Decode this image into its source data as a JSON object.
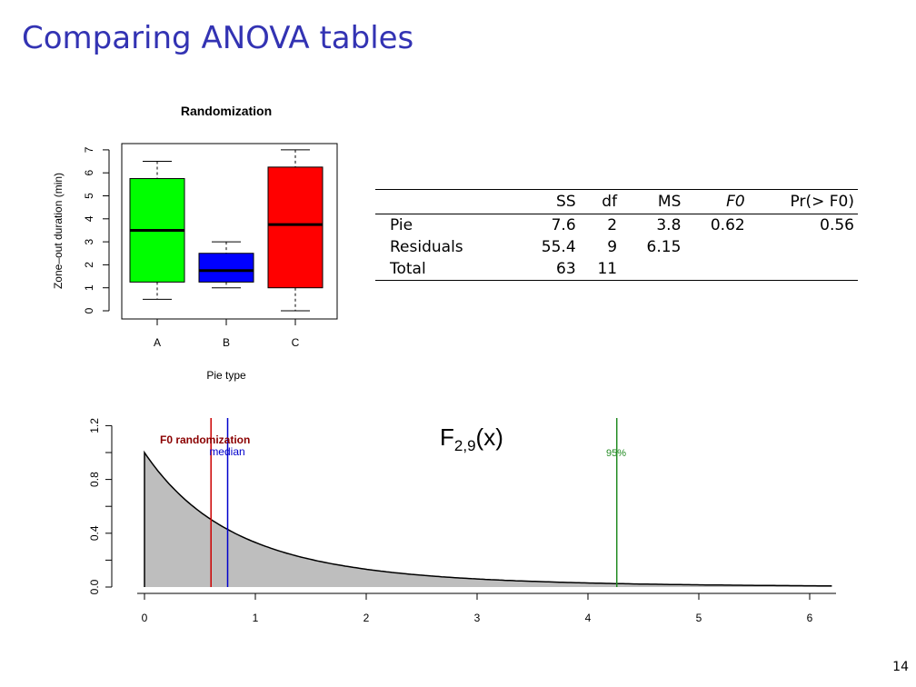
{
  "slide": {
    "title": "Comparing ANOVA tables",
    "page_number": "14"
  },
  "boxplot": {
    "title": "Randomization",
    "xlabel": "Pie type",
    "ylabel": "Zone–out duration (min)",
    "yticks": [
      "0",
      "1",
      "2",
      "3",
      "4",
      "5",
      "6",
      "7"
    ]
  },
  "anova_table": {
    "headers": [
      "",
      "SS",
      "df",
      "MS",
      "F0",
      "Pr(> F0)"
    ],
    "rows": [
      [
        "Pie",
        "7.6",
        "2",
        "3.8",
        "0.62",
        "0.56"
      ],
      [
        "Residuals",
        "55.4",
        "9",
        "6.15",
        "",
        ""
      ],
      [
        "Total",
        "63",
        "11",
        "",
        "",
        ""
      ]
    ]
  },
  "density": {
    "title_main": "F",
    "title_sub": "2,9",
    "title_tail": "(x)",
    "f0_label": "F0 randomization",
    "median_label": "median",
    "pct_label": "95%",
    "xticks": [
      "0",
      "1",
      "2",
      "3",
      "4",
      "5",
      "6"
    ],
    "yticks": [
      "0.0",
      "0.4",
      "0.8",
      "1.2"
    ]
  },
  "colors": {
    "title": "#3333b3",
    "box_a": "#00ff00",
    "box_b": "#0000ff",
    "box_c": "#ff0000",
    "f0_line": "#cc0000",
    "median_line": "#0000cc",
    "pct_line": "#228b22",
    "f0_text": "#8b0000",
    "fill": "#bebebe"
  },
  "chart_data": [
    {
      "type": "box",
      "title": "Randomization",
      "xlabel": "Pie type",
      "ylabel": "Zone–out duration (min)",
      "ylim": [
        0,
        7
      ],
      "categories": [
        "A",
        "B",
        "C"
      ],
      "boxes": [
        {
          "name": "A",
          "min": 0.5,
          "q1": 1.25,
          "median": 3.5,
          "q3": 5.75,
          "max": 6.5
        },
        {
          "name": "B",
          "min": 1.0,
          "q1": 1.25,
          "median": 1.75,
          "q3": 2.5,
          "max": 3.0
        },
        {
          "name": "C",
          "min": 0.0,
          "q1": 1.0,
          "median": 3.75,
          "q3": 6.25,
          "max": 7.0
        }
      ]
    },
    {
      "type": "area",
      "title": "F2,9(x)",
      "distribution": {
        "df1": 2,
        "df2": 9
      },
      "xlim": [
        0,
        6.2
      ],
      "ylim": [
        0,
        1.2
      ],
      "xticks": [
        0,
        1,
        2,
        3,
        4,
        5,
        6
      ],
      "yticks": [
        0,
        0.4,
        0.8,
        1.2
      ],
      "vlines": [
        {
          "label": "F0 randomization",
          "x": 0.6
        },
        {
          "label": "median",
          "x": 0.75
        },
        {
          "label": "95%",
          "x": 4.26
        }
      ]
    }
  ]
}
